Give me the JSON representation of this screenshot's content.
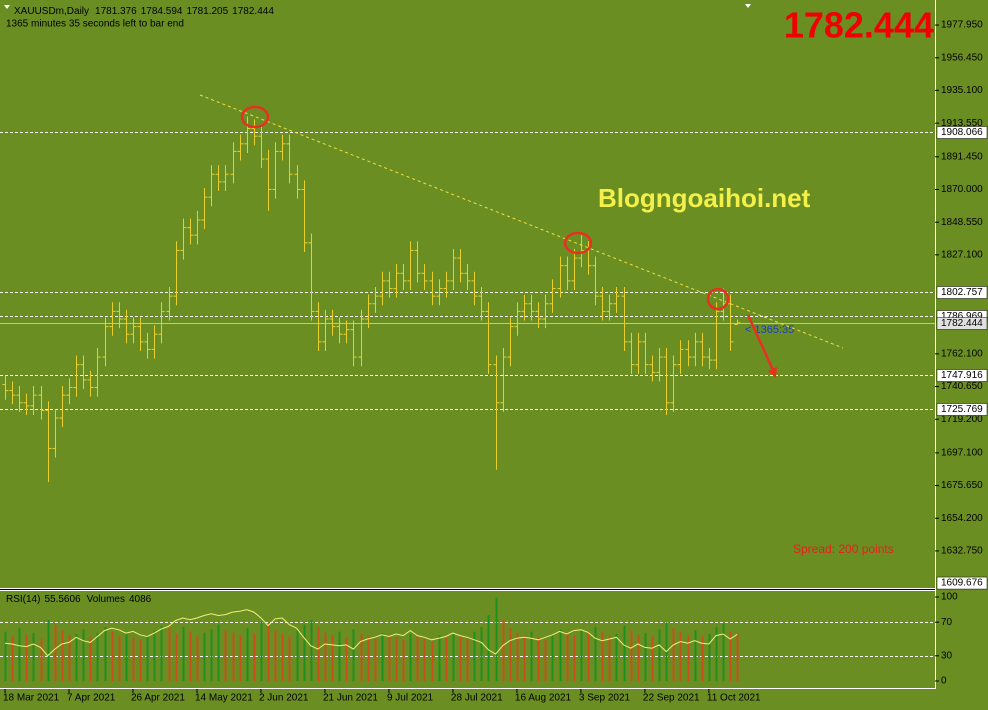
{
  "chart_data": {
    "type": "ohlc",
    "symbol": "XAUUSDm,Daily",
    "countdown": "1365 minutes 35 seconds left to bar end",
    "current_price": 1782.444,
    "timer": "< 1365:35",
    "watermark": "Blogngoaihoi.net",
    "spread": "Spread: 200 points",
    "color": "#e9cf2c",
    "background": "#6b8e23",
    "categories": [
      "18 Mar 2021",
      null,
      null,
      null,
      null,
      null,
      null,
      null,
      null,
      "7 Apr 2021",
      null,
      null,
      null,
      null,
      null,
      null,
      null,
      null,
      "26 Apr 2021",
      null,
      null,
      null,
      null,
      null,
      null,
      null,
      null,
      "14 May 2021",
      null,
      null,
      null,
      null,
      null,
      null,
      null,
      null,
      "2 Jun 2021",
      null,
      null,
      null,
      null,
      null,
      null,
      null,
      null,
      "21 Jun 2021",
      null,
      null,
      null,
      null,
      null,
      null,
      null,
      null,
      "9 Jul 2021",
      null,
      null,
      null,
      null,
      null,
      null,
      null,
      null,
      "28 Jul 2021",
      null,
      null,
      null,
      null,
      null,
      null,
      null,
      null,
      "16 Aug 2021",
      null,
      null,
      null,
      null,
      null,
      null,
      null,
      null,
      "3 Sep 2021",
      null,
      null,
      null,
      null,
      null,
      null,
      null,
      null,
      "22 Sep 2021",
      null,
      null,
      null,
      null,
      null,
      null,
      null,
      null,
      "11 Oct 2021",
      null,
      null,
      null,
      null
    ],
    "open": [
      1742,
      1738,
      1735,
      1730,
      1728,
      1735,
      1725,
      1700,
      1720,
      1735,
      1740,
      1755,
      1745,
      1740,
      1760,
      1780,
      1790,
      1785,
      1775,
      1780,
      1770,
      1765,
      1775,
      1790,
      1800,
      1830,
      1845,
      1840,
      1850,
      1865,
      1880,
      1875,
      1880,
      1895,
      1900,
      1910,
      1905,
      1890,
      1870,
      1895,
      1900,
      1880,
      1870,
      1835,
      1790,
      1770,
      1785,
      1780,
      1775,
      1778,
      1760,
      1785,
      1795,
      1800,
      1810,
      1805,
      1815,
      1810,
      1830,
      1815,
      1810,
      1800,
      1805,
      1810,
      1825,
      1815,
      1810,
      1800,
      1790,
      1755,
      1730,
      1760,
      1780,
      1790,
      1795,
      1790,
      1785,
      1795,
      1805,
      1820,
      1810,
      1825,
      1830,
      1820,
      1800,
      1790,
      1795,
      1800,
      1770,
      1755,
      1770,
      1755,
      1750,
      1760,
      1730,
      1755,
      1765,
      1760,
      1770,
      1760,
      1758,
      1790,
      1795,
      1781.376
    ],
    "high": [
      1748,
      1744,
      1741,
      1736,
      1741,
      1741,
      1731,
      1726,
      1741,
      1746,
      1761,
      1761,
      1751,
      1766,
      1786,
      1796,
      1796,
      1791,
      1786,
      1786,
      1776,
      1781,
      1796,
      1806,
      1836,
      1851,
      1851,
      1856,
      1871,
      1886,
      1886,
      1886,
      1901,
      1906,
      1918,
      1916,
      1911,
      1896,
      1901,
      1906,
      1906,
      1886,
      1876,
      1841,
      1796,
      1791,
      1791,
      1786,
      1784,
      1784,
      1791,
      1801,
      1806,
      1816,
      1816,
      1821,
      1821,
      1836,
      1836,
      1821,
      1816,
      1811,
      1816,
      1831,
      1831,
      1821,
      1816,
      1806,
      1796,
      1761,
      1766,
      1786,
      1796,
      1801,
      1801,
      1796,
      1801,
      1811,
      1826,
      1826,
      1831,
      1840,
      1836,
      1826,
      1806,
      1801,
      1806,
      1806,
      1776,
      1776,
      1776,
      1761,
      1766,
      1766,
      1761,
      1771,
      1771,
      1776,
      1776,
      1766,
      1796,
      1805,
      1801,
      1784.594
    ],
    "low": [
      1732,
      1729,
      1724,
      1722,
      1722,
      1719,
      1678,
      1694,
      1714,
      1729,
      1734,
      1739,
      1734,
      1734,
      1754,
      1774,
      1779,
      1769,
      1769,
      1764,
      1759,
      1759,
      1769,
      1784,
      1794,
      1824,
      1834,
      1834,
      1844,
      1859,
      1869,
      1869,
      1874,
      1889,
      1894,
      1899,
      1884,
      1856,
      1864,
      1889,
      1874,
      1864,
      1829,
      1784,
      1764,
      1764,
      1774,
      1769,
      1769,
      1754,
      1754,
      1779,
      1789,
      1794,
      1799,
      1799,
      1804,
      1804,
      1809,
      1804,
      1794,
      1794,
      1799,
      1804,
      1809,
      1804,
      1794,
      1784,
      1749,
      1686,
      1724,
      1754,
      1774,
      1784,
      1784,
      1779,
      1779,
      1789,
      1799,
      1804,
      1804,
      1819,
      1814,
      1794,
      1784,
      1784,
      1789,
      1764,
      1749,
      1749,
      1749,
      1744,
      1744,
      1722,
      1724,
      1749,
      1754,
      1754,
      1754,
      1752,
      1752,
      1784,
      1764,
      1781.205
    ],
    "close": [
      1738,
      1735,
      1730,
      1728,
      1735,
      1725,
      1700,
      1720,
      1735,
      1740,
      1755,
      1745,
      1740,
      1760,
      1780,
      1790,
      1785,
      1775,
      1780,
      1770,
      1765,
      1775,
      1790,
      1800,
      1830,
      1845,
      1840,
      1850,
      1865,
      1880,
      1875,
      1880,
      1895,
      1900,
      1910,
      1905,
      1890,
      1870,
      1895,
      1900,
      1880,
      1870,
      1835,
      1790,
      1770,
      1785,
      1780,
      1775,
      1778,
      1760,
      1785,
      1795,
      1800,
      1810,
      1805,
      1815,
      1810,
      1830,
      1815,
      1810,
      1800,
      1805,
      1810,
      1825,
      1815,
      1810,
      1800,
      1790,
      1755,
      1730,
      1760,
      1780,
      1790,
      1795,
      1790,
      1785,
      1795,
      1805,
      1820,
      1810,
      1825,
      1830,
      1820,
      1800,
      1790,
      1795,
      1800,
      1770,
      1755,
      1770,
      1755,
      1750,
      1760,
      1730,
      1755,
      1765,
      1760,
      1770,
      1760,
      1758,
      1790,
      1795,
      1770,
      1782.444
    ],
    "ylim": [
      1608.4,
      1994.4
    ],
    "yticks": [
      {
        "value": 1977.95,
        "label": "1977.950"
      },
      {
        "value": 1956.45,
        "label": "1956.450"
      },
      {
        "value": 1935.1,
        "label": "1935.100"
      },
      {
        "value": 1913.55,
        "label": "1913.550"
      },
      {
        "value": 1891.45,
        "label": "1891.450"
      },
      {
        "value": 1870,
        "label": "1870.000"
      },
      {
        "value": 1848.55,
        "label": "1848.550"
      },
      {
        "value": 1827.1,
        "label": "1827.100"
      },
      {
        "value": 1762.1,
        "label": "1762.100"
      },
      {
        "value": 1740.65,
        "label": "1740.650"
      },
      {
        "value": 1719.2,
        "label": "1719.200"
      },
      {
        "value": 1697.1,
        "label": "1697.100"
      },
      {
        "value": 1675.65,
        "label": "1675.650"
      },
      {
        "value": 1654.2,
        "label": "1654.200"
      },
      {
        "value": 1632.75,
        "label": "1632.750"
      }
    ],
    "levels": [
      1908.066,
      1802.757,
      1786.969,
      1747.916,
      1725.769
    ],
    "bottom_label": 1609.676,
    "indicator": {
      "series": [
        {
          "name": "RSI(14)",
          "color": "#f3f07a",
          "values": [
            45,
            44,
            42,
            41,
            44,
            40,
            30,
            38,
            44,
            46,
            52,
            48,
            46,
            53,
            60,
            63,
            61,
            57,
            59,
            55,
            53,
            57,
            62,
            65,
            72,
            75,
            73,
            75,
            78,
            80,
            78,
            79,
            82,
            83,
            85,
            82,
            75,
            66,
            74,
            75,
            67,
            63,
            52,
            42,
            38,
            44,
            43,
            42,
            43,
            38,
            47,
            50,
            52,
            55,
            53,
            56,
            54,
            60,
            54,
            52,
            49,
            51,
            53,
            57,
            54,
            52,
            49,
            46,
            37,
            32,
            42,
            48,
            51,
            52,
            51,
            49,
            52,
            55,
            59,
            56,
            60,
            61,
            58,
            51,
            48,
            50,
            52,
            43,
            39,
            44,
            40,
            39,
            43,
            35,
            43,
            47,
            45,
            48,
            45,
            44,
            54,
            56,
            50,
            55.5606
          ]
        },
        {
          "name": "Volumes",
          "axis": "y2",
          "up_color": "#1f8f1f",
          "down_color": "#c8501e",
          "values": [
            4200,
            3800,
            4500,
            3900,
            4100,
            3600,
            5200,
            4800,
            4300,
            3900,
            4000,
            4400,
            3700,
            4100,
            4600,
            4200,
            3800,
            4000,
            3700,
            3500,
            3900,
            4300,
            4700,
            4500,
            4000,
            4600,
            4200,
            3800,
            4100,
            4400,
            4800,
            4300,
            4100,
            3900,
            4500,
            4000,
            5100,
            4700,
            4300,
            4000,
            3800,
            4300,
            4800,
            5200,
            4600,
            4100,
            3900,
            4200,
            3700,
            4400,
            4000,
            3800,
            3600,
            4100,
            3900,
            3700,
            3500,
            4000,
            3800,
            3600,
            3400,
            3900,
            3700,
            4100,
            3800,
            3600,
            4200,
            4600,
            5600,
            7100,
            5200,
            4500,
            4100,
            3900,
            4200,
            3700,
            3500,
            3900,
            4400,
            4100,
            3900,
            4300,
            4000,
            4600,
            4200,
            3800,
            4000,
            4700,
            4300,
            3900,
            4100,
            3800,
            4400,
            5000,
            4500,
            4200,
            3900,
            4300,
            3800,
            4000,
            4600,
            4900,
            4200,
            4086
          ]
        }
      ],
      "ylim": [
        0,
        100
      ],
      "yticks": [
        100,
        70,
        30,
        0
      ],
      "levels": [
        70,
        30
      ],
      "y2lim": [
        0,
        7150
      ]
    }
  }
}
